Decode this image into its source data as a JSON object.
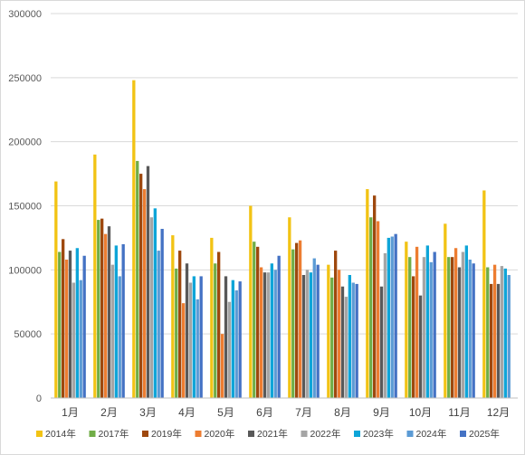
{
  "chart_data": {
    "type": "bar",
    "categories": [
      "1月",
      "2月",
      "3月",
      "4月",
      "5月",
      "6月",
      "7月",
      "8月",
      "9月",
      "10月",
      "11月",
      "12月"
    ],
    "ylim": [
      0,
      300000
    ],
    "yticks": [
      "0",
      "50000",
      "100000",
      "150000",
      "200000",
      "250000",
      "300000"
    ],
    "grid": true,
    "legend_position": "bottom",
    "series": [
      {
        "name": "2014年",
        "color": "#f2c314",
        "values": [
          169000,
          190000,
          248000,
          127000,
          125000,
          150000,
          141000,
          104000,
          163000,
          122000,
          136000,
          162000
        ]
      },
      {
        "name": "2017年",
        "color": "#70ad47",
        "values": [
          114000,
          139000,
          185000,
          101000,
          105000,
          122000,
          116000,
          94000,
          141000,
          110000,
          110000,
          102000
        ]
      },
      {
        "name": "2019年",
        "color": "#9e480e",
        "values": [
          124000,
          140000,
          175000,
          115000,
          114000,
          118000,
          121000,
          115000,
          158000,
          95000,
          110000,
          89000
        ]
      },
      {
        "name": "2020年",
        "color": "#ed7d31",
        "values": [
          108000,
          128000,
          163000,
          74000,
          50000,
          102000,
          123000,
          100000,
          138000,
          118000,
          117000,
          104000
        ]
      },
      {
        "name": "2021年",
        "color": "#595959",
        "values": [
          115000,
          134000,
          181000,
          105000,
          95000,
          98000,
          96000,
          87000,
          87000,
          80000,
          102000,
          89000
        ]
      },
      {
        "name": "2022年",
        "color": "#a5a5a5",
        "values": [
          90000,
          104000,
          141000,
          90000,
          75000,
          98000,
          100000,
          79000,
          113000,
          110000,
          114000,
          103000
        ]
      },
      {
        "name": "2023年",
        "color": "#0ea5d8",
        "values": [
          117000,
          119000,
          148000,
          95000,
          92000,
          105000,
          98000,
          96000,
          125000,
          119000,
          119000,
          101000
        ]
      },
      {
        "name": "2024年",
        "color": "#5b9bd5",
        "values": [
          92000,
          95000,
          115000,
          77000,
          84000,
          100000,
          109000,
          90000,
          126000,
          106000,
          108000,
          96000
        ]
      },
      {
        "name": "2025年",
        "color": "#4472c4",
        "values": [
          111000,
          120000,
          132000,
          95000,
          91000,
          111000,
          104000,
          89000,
          128000,
          114000,
          105000,
          null
        ]
      }
    ]
  }
}
